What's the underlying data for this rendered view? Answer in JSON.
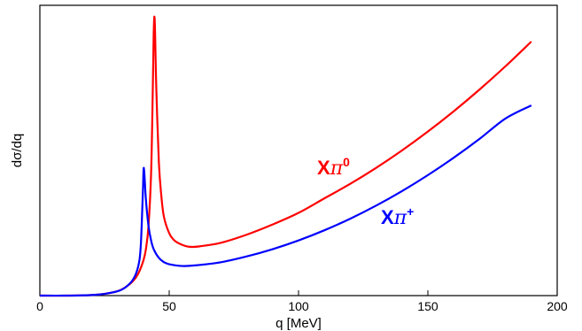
{
  "chart_data": {
    "type": "line",
    "xlabel": "q [MeV]",
    "ylabel": "dσ/dq",
    "xlim": [
      0,
      200
    ],
    "ylim": [
      0,
      1
    ],
    "xticks": [
      0,
      50,
      100,
      150,
      200
    ],
    "grid": false,
    "series": [
      {
        "name": "Xπ0",
        "label_main": "X",
        "label_pi": "π",
        "label_sup": "0",
        "color": "#ff0000",
        "x": [
          0,
          10,
          20,
          25,
          30,
          33,
          36,
          38,
          40,
          41,
          42,
          43,
          43.6,
          44,
          44.4,
          45,
          46,
          47,
          48,
          50,
          52,
          55,
          58,
          62,
          70,
          80,
          90,
          100,
          110,
          120,
          130,
          140,
          150,
          160,
          170,
          180,
          190
        ],
        "y": [
          0,
          0,
          0.002,
          0.006,
          0.015,
          0.028,
          0.05,
          0.075,
          0.12,
          0.16,
          0.24,
          0.42,
          0.68,
          0.9,
          0.95,
          0.72,
          0.46,
          0.34,
          0.27,
          0.215,
          0.19,
          0.175,
          0.168,
          0.17,
          0.182,
          0.21,
          0.245,
          0.285,
          0.335,
          0.385,
          0.44,
          0.5,
          0.565,
          0.635,
          0.71,
          0.79,
          0.875
        ]
      },
      {
        "name": "Xπ+",
        "label_main": "X",
        "label_pi": "π",
        "label_sup": "+",
        "color": "#0000ff",
        "x": [
          0,
          10,
          20,
          25,
          30,
          33,
          36,
          38,
          39,
          39.8,
          40.2,
          41,
          42,
          43,
          44,
          46,
          48,
          50,
          55,
          60,
          70,
          80,
          90,
          100,
          110,
          120,
          130,
          140,
          150,
          160,
          170,
          180,
          190
        ],
        "y": [
          0,
          0,
          0.002,
          0.006,
          0.015,
          0.028,
          0.055,
          0.1,
          0.17,
          0.35,
          0.44,
          0.33,
          0.24,
          0.19,
          0.16,
          0.13,
          0.115,
          0.108,
          0.102,
          0.104,
          0.115,
          0.135,
          0.16,
          0.19,
          0.225,
          0.265,
          0.31,
          0.36,
          0.415,
          0.475,
          0.54,
          0.61,
          0.655
        ]
      }
    ]
  }
}
